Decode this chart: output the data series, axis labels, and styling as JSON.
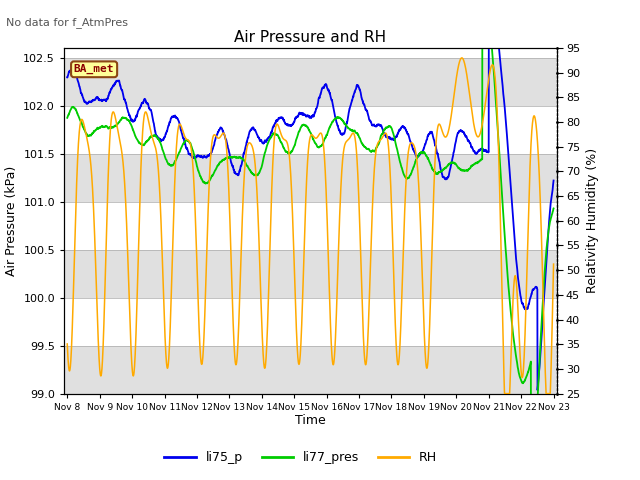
{
  "title": "Air Pressure and RH",
  "subtitle": "No data for f_AtmPres",
  "xlabel": "Time",
  "ylabel_left": "Air Pressure (kPa)",
  "ylabel_right": "Relativity Humidity (%)",
  "ylim_left": [
    99.0,
    102.6
  ],
  "ylim_right": [
    25,
    95
  ],
  "yticks_left": [
    99.0,
    99.5,
    100.0,
    100.5,
    101.0,
    101.5,
    102.0,
    102.5
  ],
  "yticks_right": [
    25,
    30,
    35,
    40,
    45,
    50,
    55,
    60,
    65,
    70,
    75,
    80,
    85,
    90,
    95
  ],
  "xtick_labels": [
    "Nov 8",
    "Nov 9",
    "Nov 10",
    "Nov 11",
    "Nov 12",
    "Nov 13",
    "Nov 14",
    "Nov 15",
    "Nov 16",
    "Nov 17",
    "Nov 18",
    "Nov 19",
    "Nov 20",
    "Nov 21",
    "Nov 22",
    "Nov 23"
  ],
  "color_li75": "#0000ee",
  "color_li77": "#00cc00",
  "color_rh": "#ffaa00",
  "bg_band": "#e0e0e0",
  "legend_label_li75": "li75_p",
  "legend_label_li77": "li77_pres",
  "legend_label_rh": "RH",
  "station_label": "BA_met",
  "linewidth_pressure": 1.3,
  "linewidth_rh": 1.1
}
